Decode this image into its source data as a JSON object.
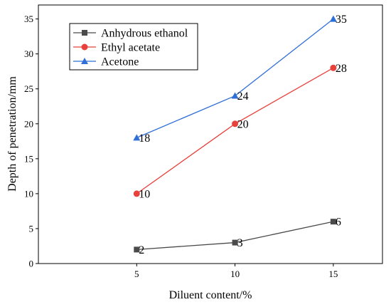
{
  "chart_data": {
    "type": "line",
    "xlabel": "Diluent content/%",
    "ylabel": "Depth of penetration/mm",
    "x": [
      5,
      10,
      15
    ],
    "xlim": [
      0,
      17.5
    ],
    "ylim": [
      0,
      37
    ],
    "xticks": [
      5,
      10,
      15
    ],
    "yticks": [
      0,
      5,
      10,
      15,
      20,
      25,
      30,
      35
    ],
    "grid": false,
    "legend_position": "top-left",
    "series": [
      {
        "name": "Anhydrous ethanol",
        "values": [
          2,
          3,
          6
        ],
        "labels": [
          "2",
          "3",
          "6"
        ],
        "color": "#4a4a4a",
        "marker": "square"
      },
      {
        "name": "Ethyl acetate",
        "values": [
          10,
          20,
          28
        ],
        "labels": [
          "10",
          "20",
          "28"
        ],
        "color": "#e8413c",
        "marker": "circle"
      },
      {
        "name": "Acetone",
        "values": [
          18,
          24,
          35
        ],
        "labels": [
          "18",
          "24",
          "35"
        ],
        "color": "#2f6fd6",
        "marker": "triangle"
      }
    ]
  }
}
